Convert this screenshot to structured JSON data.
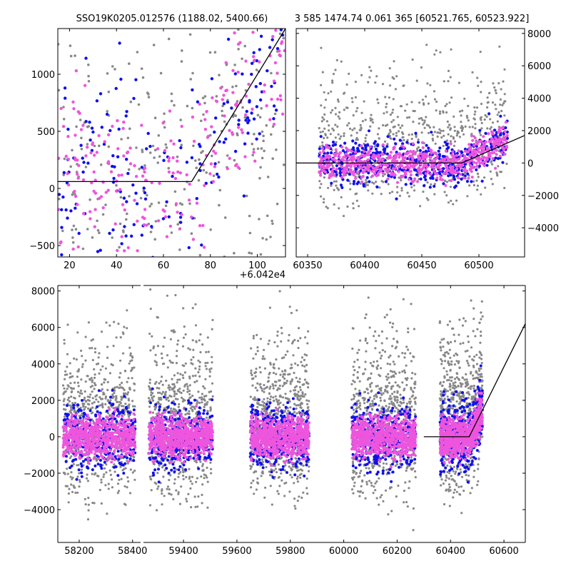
{
  "titles": {
    "left": "SSO19K0205.012576 (1188.02, 5400.66)",
    "right": "3 585 1474.74 0.061 365 [60521.765, 60523.922]"
  },
  "colors": {
    "grey": "#888888",
    "blue": "#1010ee",
    "magenta": "#ee55dd",
    "line": "#000000"
  },
  "chart_data": [
    {
      "type": "scatter",
      "panel": "top-left",
      "xlim": [
        15,
        112
      ],
      "ylim": [
        -600,
        1400
      ],
      "x_offset_label": "+6.042e4",
      "xticks": [
        20,
        40,
        60,
        80,
        100
      ],
      "xtick_labels": [
        "20",
        "40",
        "60",
        "80",
        "100"
      ],
      "yticks": [
        -500,
        0,
        500,
        1000
      ],
      "ytick_labels": [
        "−500",
        "0",
        "500",
        "1000"
      ],
      "series": [
        {
          "color": "grey",
          "cluster_x": [
            15,
            112
          ],
          "y_range": [
            -600,
            1400
          ]
        },
        {
          "color": "blue",
          "cluster_x": [
            15,
            112
          ],
          "y_range": [
            -600,
            1400
          ]
        },
        {
          "color": "magenta",
          "cluster_x": [
            15,
            112
          ],
          "y_range": [
            -600,
            1400
          ]
        }
      ],
      "model_line": {
        "x": [
          15,
          72,
          112
        ],
        "y": [
          60,
          60,
          1400
        ]
      }
    },
    {
      "type": "scatter",
      "panel": "top-right",
      "xlim": [
        60340,
        60540
      ],
      "ylim": [
        -5800,
        8300
      ],
      "xticks": [
        60350,
        60400,
        60450,
        60500
      ],
      "xtick_labels": [
        "60350",
        "60400",
        "60450",
        "60500"
      ],
      "yticks": [
        -4000,
        -2000,
        0,
        2000,
        4000,
        6000,
        8000
      ],
      "ytick_labels": [
        "−4000",
        "−2000",
        "0",
        "2000",
        "4000",
        "6000",
        "8000"
      ],
      "model_line": {
        "x": [
          60340,
          60485,
          60540
        ],
        "y": [
          0,
          0,
          1700
        ]
      }
    },
    {
      "type": "scatter",
      "panel": "bottom",
      "xlim": [
        58120,
        60680
      ],
      "ylim": [
        -5800,
        8300
      ],
      "axis_break": [
        58430,
        59250
      ],
      "xticks": [
        58200,
        58400,
        59400,
        59600,
        59800,
        60000,
        60200,
        60400,
        60600
      ],
      "xtick_labels": [
        "58200",
        "58400",
        "59400",
        "59600",
        "59800",
        "60000",
        "60200",
        "60400",
        "60600"
      ],
      "yticks": [
        -4000,
        -2000,
        0,
        2000,
        4000,
        6000,
        8000
      ],
      "ytick_labels": [
        "−4000",
        "−2000",
        "0",
        "2000",
        "4000",
        "6000",
        "8000"
      ],
      "seasons": [
        [
          58140,
          58410
        ],
        [
          59270,
          59510
        ],
        [
          59650,
          59870
        ],
        [
          60030,
          60270
        ],
        [
          60360,
          60520
        ]
      ],
      "model_line": {
        "x": [
          60300,
          60470,
          60680
        ],
        "y": [
          0,
          0,
          6200
        ]
      }
    }
  ]
}
